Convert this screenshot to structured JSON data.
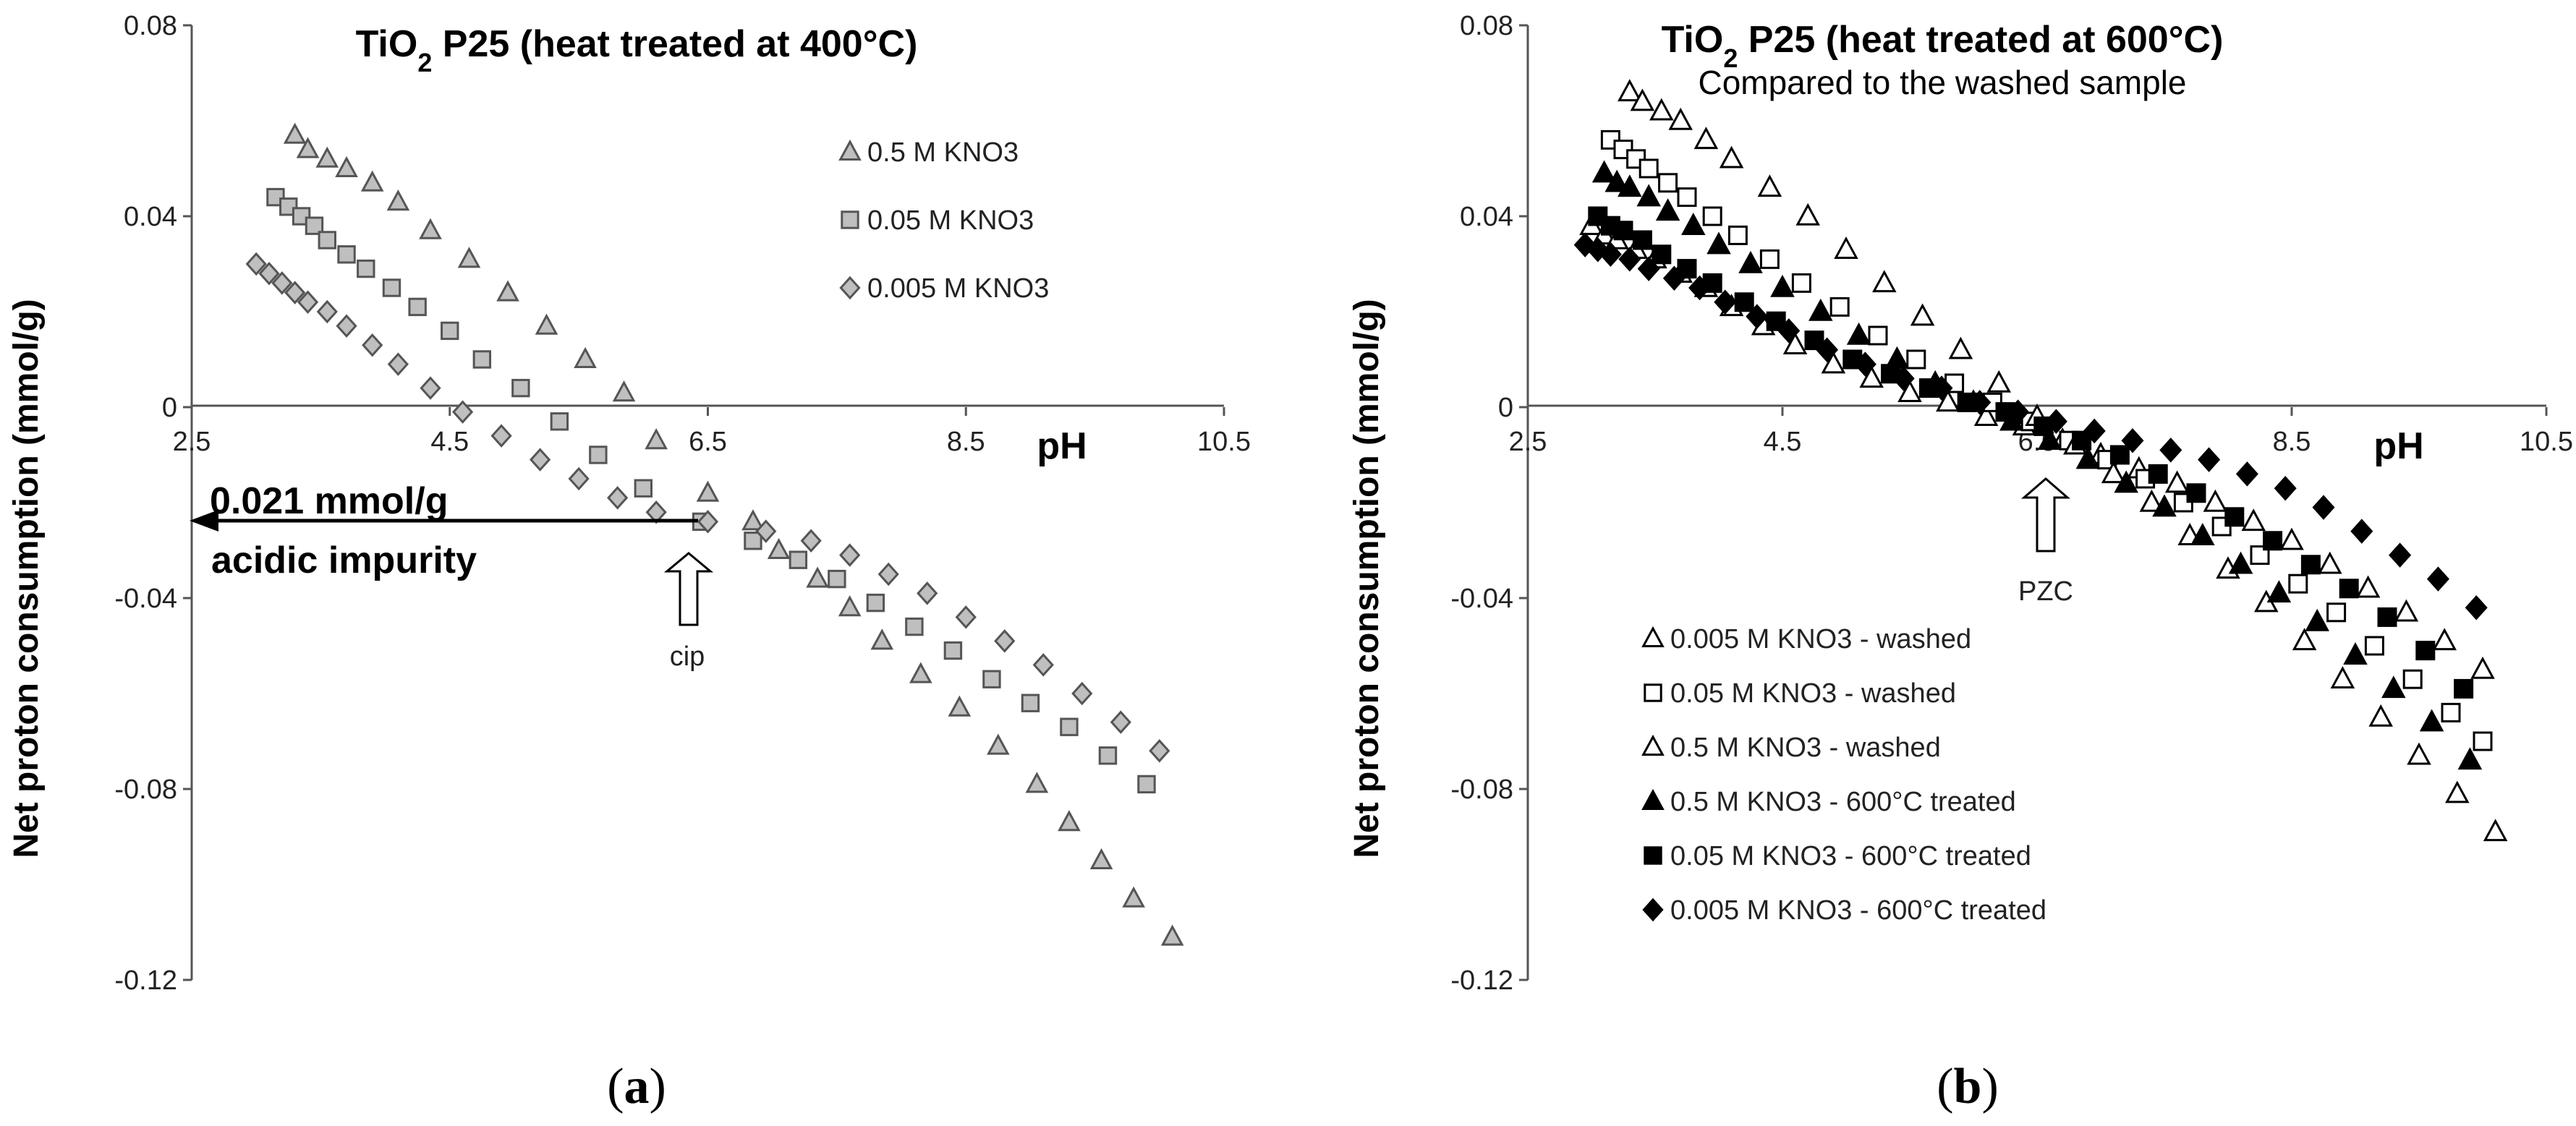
{
  "chart_data": [
    {
      "panel_label": "a",
      "type": "scatter",
      "title": {
        "pre": "TiO",
        "sub": "2",
        "post": " P25 (heat treated at 400°C)"
      },
      "subtitle": "",
      "xlabel": "pH",
      "ylabel": "Net proton consumption (mmol/g)",
      "xlim": [
        2.5,
        10.5
      ],
      "ylim": [
        -0.12,
        0.08
      ],
      "xticks": [
        "2.5",
        "4.5",
        "6.5",
        "8.5",
        "10.5"
      ],
      "yticks": [
        "0.08",
        "0.04",
        "0",
        "-0.04",
        "-0.08",
        "-0.12"
      ],
      "legend_position": "top-right",
      "annotations": {
        "impurity_line1": "0.021 mmol/g",
        "impurity_line2": "acidic impurity",
        "impurity_value": -0.021,
        "cip_label": "cip",
        "cip_ph": 6.5
      },
      "series": [
        {
          "name": "0.5 M KNO3",
          "marker": "triangle",
          "fill": "#bfbfbf",
          "stroke": "#555555",
          "x": [
            3.3,
            3.4,
            3.55,
            3.7,
            3.9,
            4.1,
            4.35,
            4.65,
            4.95,
            5.25,
            5.55,
            5.85,
            6.1,
            6.5,
            6.85,
            7.05,
            7.35,
            7.6,
            7.85,
            8.15,
            8.45,
            8.75,
            9.05,
            9.3,
            9.55,
            9.8,
            10.1
          ],
          "y": [
            0.057,
            0.054,
            0.052,
            0.05,
            0.047,
            0.043,
            0.037,
            0.031,
            0.024,
            0.017,
            0.01,
            0.003,
            -0.007,
            -0.018,
            -0.024,
            -0.03,
            -0.036,
            -0.042,
            -0.049,
            -0.056,
            -0.063,
            -0.071,
            -0.079,
            -0.087,
            -0.095,
            -0.103,
            -0.111
          ]
        },
        {
          "name": "0.05 M KNO3",
          "marker": "square",
          "fill": "#bfbfbf",
          "stroke": "#555555",
          "x": [
            3.15,
            3.25,
            3.35,
            3.45,
            3.55,
            3.7,
            3.85,
            4.05,
            4.25,
            4.5,
            4.75,
            5.05,
            5.35,
            5.65,
            6.0,
            6.45,
            6.85,
            7.2,
            7.5,
            7.8,
            8.1,
            8.4,
            8.7,
            9.0,
            9.3,
            9.6,
            9.9
          ],
          "y": [
            0.044,
            0.042,
            0.04,
            0.038,
            0.035,
            0.032,
            0.029,
            0.025,
            0.021,
            0.016,
            0.01,
            0.004,
            -0.003,
            -0.01,
            -0.017,
            -0.024,
            -0.028,
            -0.032,
            -0.036,
            -0.041,
            -0.046,
            -0.051,
            -0.057,
            -0.062,
            -0.067,
            -0.073,
            -0.079
          ]
        },
        {
          "name": "0.005 M KNO3",
          "marker": "diamond",
          "fill": "#bfbfbf",
          "stroke": "#555555",
          "x": [
            3.0,
            3.1,
            3.2,
            3.3,
            3.4,
            3.55,
            3.7,
            3.9,
            4.1,
            4.35,
            4.6,
            4.9,
            5.2,
            5.5,
            5.8,
            6.1,
            6.5,
            6.95,
            7.3,
            7.6,
            7.9,
            8.2,
            8.5,
            8.8,
            9.1,
            9.4,
            9.7,
            10.0
          ],
          "y": [
            0.03,
            0.028,
            0.026,
            0.024,
            0.022,
            0.02,
            0.017,
            0.013,
            0.009,
            0.004,
            -0.001,
            -0.006,
            -0.011,
            -0.015,
            -0.019,
            -0.022,
            -0.024,
            -0.026,
            -0.028,
            -0.031,
            -0.035,
            -0.039,
            -0.044,
            -0.049,
            -0.054,
            -0.06,
            -0.066,
            -0.072
          ]
        }
      ]
    },
    {
      "panel_label": "b",
      "type": "scatter",
      "title": {
        "pre": "TiO",
        "sub": "2",
        "post": " P25 (heat treated at 600°C)"
      },
      "subtitle": "Compared to the washed sample",
      "xlabel": "pH",
      "ylabel": "Net proton consumption (mmol/g)",
      "xlim": [
        2.5,
        10.5
      ],
      "ylim": [
        -0.12,
        0.08
      ],
      "xticks": [
        "2.5",
        "4.5",
        "6.5",
        "8.5",
        "10.5"
      ],
      "yticks": [
        "0.08",
        "0.04",
        "0",
        "-0.04",
        "-0.08",
        "-0.12"
      ],
      "legend_position": "bottom-left",
      "annotations": {
        "pzc_label": "PZC",
        "pzc_ph": 6.6
      },
      "series": [
        {
          "name": "0.005 M KNO3 - washed",
          "marker": "triangle",
          "fill": "#ffffff",
          "stroke": "#000000",
          "x": [
            3.0,
            3.1,
            3.2,
            3.35,
            3.5,
            3.7,
            3.9,
            4.1,
            4.35,
            4.6,
            4.9,
            5.2,
            5.5,
            5.8,
            6.1,
            6.4,
            6.7,
            7.0,
            7.3,
            7.6,
            7.9,
            8.2,
            8.5,
            8.8,
            9.1,
            9.4,
            9.7,
            10.0
          ],
          "y": [
            0.038,
            0.036,
            0.035,
            0.033,
            0.031,
            0.028,
            0.025,
            0.021,
            0.017,
            0.013,
            0.009,
            0.006,
            0.003,
            0.001,
            -0.002,
            -0.004,
            -0.007,
            -0.01,
            -0.013,
            -0.016,
            -0.02,
            -0.024,
            -0.028,
            -0.033,
            -0.038,
            -0.043,
            -0.049,
            -0.055
          ]
        },
        {
          "name": "0.05 M KNO3 - washed",
          "marker": "square",
          "fill": "#ffffff",
          "stroke": "#000000",
          "x": [
            3.15,
            3.25,
            3.35,
            3.45,
            3.6,
            3.75,
            3.95,
            4.15,
            4.4,
            4.65,
            4.95,
            5.25,
            5.55,
            5.85,
            6.15,
            6.45,
            6.75,
            7.05,
            7.35,
            7.65,
            7.95,
            8.25,
            8.55,
            8.85,
            9.15,
            9.45,
            9.75,
            10.0
          ],
          "y": [
            0.056,
            0.054,
            0.052,
            0.05,
            0.047,
            0.044,
            0.04,
            0.036,
            0.031,
            0.026,
            0.021,
            0.015,
            0.01,
            0.005,
            0.001,
            -0.003,
            -0.007,
            -0.011,
            -0.015,
            -0.02,
            -0.025,
            -0.031,
            -0.037,
            -0.043,
            -0.05,
            -0.057,
            -0.064,
            -0.07
          ]
        },
        {
          "name": "0.5 M KNO3 - washed",
          "marker": "triangle",
          "fill": "#ffffff",
          "stroke": "#000000",
          "x": [
            3.3,
            3.4,
            3.55,
            3.7,
            3.9,
            4.1,
            4.4,
            4.7,
            5.0,
            5.3,
            5.6,
            5.9,
            6.2,
            6.5,
            6.8,
            7.1,
            7.4,
            7.7,
            8.0,
            8.3,
            8.6,
            8.9,
            9.2,
            9.5,
            9.8,
            10.1
          ],
          "y": [
            0.066,
            0.064,
            0.062,
            0.06,
            0.056,
            0.052,
            0.046,
            0.04,
            0.033,
            0.026,
            0.019,
            0.012,
            0.005,
            -0.002,
            -0.008,
            -0.014,
            -0.02,
            -0.027,
            -0.034,
            -0.041,
            -0.049,
            -0.057,
            -0.065,
            -0.073,
            -0.081,
            -0.089
          ]
        },
        {
          "name": "0.5 M KNO3 - 600°C treated",
          "marker": "triangle",
          "fill": "#000000",
          "stroke": "#000000",
          "x": [
            3.1,
            3.2,
            3.3,
            3.45,
            3.6,
            3.8,
            4.0,
            4.25,
            4.5,
            4.8,
            5.1,
            5.4,
            5.7,
            6.0,
            6.3,
            6.6,
            6.9,
            7.2,
            7.5,
            7.8,
            8.1,
            8.4,
            8.7,
            9.0,
            9.3,
            9.6,
            9.9
          ],
          "y": [
            0.049,
            0.047,
            0.046,
            0.044,
            0.041,
            0.038,
            0.034,
            0.03,
            0.025,
            0.02,
            0.015,
            0.01,
            0.005,
            0.001,
            -0.003,
            -0.007,
            -0.011,
            -0.016,
            -0.021,
            -0.027,
            -0.033,
            -0.039,
            -0.045,
            -0.052,
            -0.059,
            -0.066,
            -0.074
          ]
        },
        {
          "name": "0.05 M KNO3 - 600°C treated",
          "marker": "square",
          "fill": "#000000",
          "stroke": "#000000",
          "x": [
            3.05,
            3.15,
            3.25,
            3.4,
            3.55,
            3.75,
            3.95,
            4.2,
            4.45,
            4.75,
            5.05,
            5.35,
            5.65,
            5.95,
            6.25,
            6.55,
            6.85,
            7.15,
            7.45,
            7.75,
            8.05,
            8.35,
            8.65,
            8.95,
            9.25,
            9.55,
            9.85
          ],
          "y": [
            0.04,
            0.038,
            0.037,
            0.035,
            0.032,
            0.029,
            0.026,
            0.022,
            0.018,
            0.014,
            0.01,
            0.007,
            0.004,
            0.001,
            -0.001,
            -0.004,
            -0.007,
            -0.01,
            -0.014,
            -0.018,
            -0.023,
            -0.028,
            -0.033,
            -0.038,
            -0.044,
            -0.051,
            -0.059
          ]
        },
        {
          "name": "0.005 M KNO3 - 600°C treated",
          "marker": "diamond",
          "fill": "#000000",
          "stroke": "#000000",
          "x": [
            2.95,
            3.05,
            3.15,
            3.3,
            3.45,
            3.65,
            3.85,
            4.05,
            4.3,
            4.55,
            4.85,
            5.15,
            5.45,
            5.75,
            6.05,
            6.35,
            6.65,
            6.95,
            7.25,
            7.55,
            7.85,
            8.15,
            8.45,
            8.75,
            9.05,
            9.35,
            9.65,
            9.95
          ],
          "y": [
            0.034,
            0.033,
            0.032,
            0.031,
            0.029,
            0.027,
            0.025,
            0.022,
            0.019,
            0.016,
            0.012,
            0.009,
            0.006,
            0.004,
            0.001,
            -0.001,
            -0.003,
            -0.005,
            -0.007,
            -0.009,
            -0.011,
            -0.014,
            -0.017,
            -0.021,
            -0.026,
            -0.031,
            -0.036,
            -0.042
          ]
        }
      ]
    }
  ]
}
